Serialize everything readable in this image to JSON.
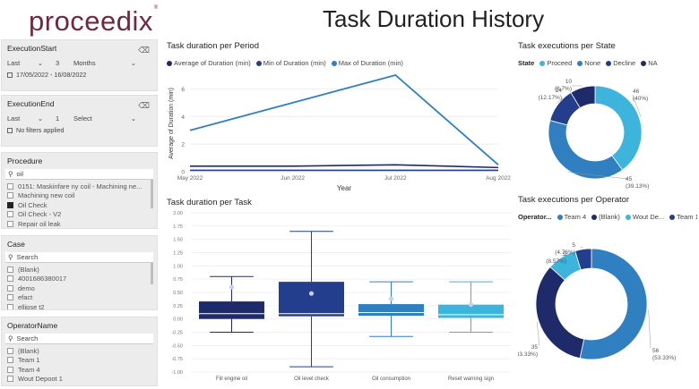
{
  "brand": {
    "logo_text": "proceedix",
    "logo_mark": "®"
  },
  "page_title": "Task Duration History",
  "slicers": {
    "execution_start": {
      "header": "ExecutionStart",
      "mode": "Last",
      "count": "3",
      "unit": "Months",
      "range": "17/05/2022 - 16/08/2022"
    },
    "execution_end": {
      "header": "ExecutionEnd",
      "mode": "Last",
      "count": "1",
      "unit": "Select",
      "status": "No filters applied"
    },
    "procedure": {
      "header": "Procedure",
      "search_value": "oil",
      "items": [
        {
          "label": "0151: Maskinfare ny coil - Machining ne...",
          "checked": false
        },
        {
          "label": "Machining new coil",
          "checked": false
        },
        {
          "label": "Oil Check",
          "checked": true
        },
        {
          "label": "Oil Check - V2",
          "checked": false
        },
        {
          "label": "Repair oil leak",
          "checked": false
        }
      ]
    },
    "case": {
      "header": "Case",
      "search_placeholder": "Search",
      "items": [
        {
          "label": "(Blank)",
          "checked": false
        },
        {
          "label": "4001686380017",
          "checked": false
        },
        {
          "label": "demo",
          "checked": false
        },
        {
          "label": "efact",
          "checked": false
        },
        {
          "label": "ellipse t2",
          "checked": false
        }
      ]
    },
    "operator": {
      "header": "OperatorName",
      "search_placeholder": "Search",
      "items": [
        {
          "label": "(Blank)",
          "checked": false
        },
        {
          "label": "Team 1",
          "checked": false
        },
        {
          "label": "Team 4",
          "checked": false
        },
        {
          "label": "Wout Depoot 1",
          "checked": false
        }
      ]
    }
  },
  "colors": {
    "dark_navy": "#1f2a6b",
    "navy": "#223e8c",
    "blue": "#2f7fc1",
    "light_blue": "#3db4dc",
    "accent": "#6e2a3c"
  },
  "chart_data": [
    {
      "id": "period",
      "type": "line",
      "title": "Task duration per Period",
      "xlabel": "Year",
      "ylabel": "Average of Duration (min)",
      "categories": [
        "May 2022",
        "Jun 2022",
        "Jul 2022",
        "Aug 2022"
      ],
      "ylim": [
        0,
        7
      ],
      "yticks": [
        "0",
        "2",
        "4",
        "6"
      ],
      "series": [
        {
          "name": "Average of Duration (min)",
          "values": [
            0.4,
            0.4,
            0.5,
            0.3
          ]
        },
        {
          "name": "Min of Duration (min)",
          "values": [
            0.1,
            0.1,
            0.1,
            0.1
          ]
        },
        {
          "name": "Max of Duration (min)",
          "values": [
            3.0,
            5.0,
            7.0,
            0.5
          ]
        }
      ]
    },
    {
      "id": "task",
      "type": "box",
      "title": "Task duration per Task",
      "ylim": [
        -1.0,
        2.0
      ],
      "yticks": [
        "2.00",
        "1.75",
        "1.50",
        "1.25",
        "1.00",
        "0.75",
        "0.50",
        "0.25",
        "0.00",
        "-0.25",
        "-0.50",
        "-0.75",
        "-1.00"
      ],
      "boxes": [
        {
          "label": "Fill engine oil",
          "min": -0.25,
          "q1": 0.0,
          "median": 0.1,
          "q3": 0.33,
          "max": 0.8,
          "mean": 0.6
        },
        {
          "label": "Oil level check",
          "min": -0.9,
          "q1": 0.05,
          "median": 0.1,
          "q3": 0.7,
          "max": 1.65,
          "mean": 0.48
        },
        {
          "label": "Oil consumption",
          "min": -0.33,
          "q1": 0.06,
          "median": 0.12,
          "q3": 0.28,
          "max": 0.7,
          "mean": 0.38
        },
        {
          "label": "Reset warning sign",
          "min": -0.25,
          "q1": 0.02,
          "median": 0.08,
          "q3": 0.27,
          "max": 0.7,
          "mean": 0.27
        }
      ]
    },
    {
      "id": "state",
      "type": "donut",
      "title": "Task executions per State",
      "legend_title": "State",
      "legend": [
        "Proceed",
        "None",
        "Decline",
        "NA"
      ],
      "slices": [
        {
          "name": "Proceed",
          "value": 46,
          "label": "46 (40%)"
        },
        {
          "name": "None",
          "value": 45,
          "label": "45 (39.13%)"
        },
        {
          "name": "Decline",
          "value": 14,
          "label": "14 (12.17%)"
        },
        {
          "name": "NA",
          "value": 10,
          "label": "10 (8.7%)"
        }
      ]
    },
    {
      "id": "operator",
      "type": "donut",
      "title": "Task executions per Operator",
      "legend_title": "Operator...",
      "legend": [
        "Team 4",
        "(Blank)",
        "Wout De...",
        "Team 1"
      ],
      "slices": [
        {
          "name": "Team 4",
          "value": 56,
          "label": "56 (53.33%)"
        },
        {
          "name": "(Blank)",
          "value": 35,
          "label": "35 (33.33%)"
        },
        {
          "name": "Wout De...",
          "value": 9,
          "label": "9 (8.57%)"
        },
        {
          "name": "Team 1",
          "value": 5,
          "label": "5 (4.76%)"
        }
      ]
    }
  ]
}
